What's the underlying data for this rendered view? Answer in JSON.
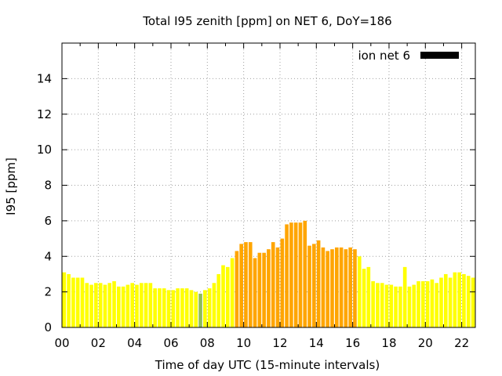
{
  "chart_data": {
    "type": "bar",
    "title": "Total I95 zenith [ppm] on NET 6, DoY=186",
    "xlabel": "Time of day UTC (15-minute intervals)",
    "ylabel": "I95 [ppm]",
    "xlim": [
      0,
      22.75
    ],
    "ylim": [
      0,
      16
    ],
    "grid": true,
    "legend": {
      "label": "ion net 6",
      "color": "#000000",
      "position": "top-right"
    },
    "x_ticks": [
      {
        "v": 0,
        "label": "00"
      },
      {
        "v": 2,
        "label": "02"
      },
      {
        "v": 4,
        "label": "04"
      },
      {
        "v": 6,
        "label": "06"
      },
      {
        "v": 8,
        "label": "08"
      },
      {
        "v": 10,
        "label": "10"
      },
      {
        "v": 12,
        "label": "12"
      },
      {
        "v": 14,
        "label": "14"
      },
      {
        "v": 16,
        "label": "16"
      },
      {
        "v": 18,
        "label": "18"
      },
      {
        "v": 20,
        "label": "20"
      },
      {
        "v": 22,
        "label": "22"
      }
    ],
    "y_ticks": [
      {
        "v": 0,
        "label": "0"
      },
      {
        "v": 2,
        "label": "2"
      },
      {
        "v": 4,
        "label": "4"
      },
      {
        "v": 6,
        "label": "6"
      },
      {
        "v": 8,
        "label": "8"
      },
      {
        "v": 10,
        "label": "10"
      },
      {
        "v": 12,
        "label": "12"
      },
      {
        "v": 14,
        "label": "14"
      }
    ],
    "interval_hours": 0.25,
    "colors": {
      "low": "#ffff00",
      "mid": "#ffa500",
      "dip": "#8fbc5a"
    },
    "bars": [
      {
        "x": 0.0,
        "y": 3.1,
        "c": "low"
      },
      {
        "x": 0.25,
        "y": 3.0,
        "c": "low"
      },
      {
        "x": 0.5,
        "y": 2.8,
        "c": "low"
      },
      {
        "x": 0.75,
        "y": 2.8,
        "c": "low"
      },
      {
        "x": 1.0,
        "y": 2.8,
        "c": "low"
      },
      {
        "x": 1.25,
        "y": 2.5,
        "c": "low"
      },
      {
        "x": 1.5,
        "y": 2.4,
        "c": "low"
      },
      {
        "x": 1.75,
        "y": 2.5,
        "c": "low"
      },
      {
        "x": 2.0,
        "y": 2.5,
        "c": "low"
      },
      {
        "x": 2.25,
        "y": 2.4,
        "c": "low"
      },
      {
        "x": 2.5,
        "y": 2.5,
        "c": "low"
      },
      {
        "x": 2.75,
        "y": 2.6,
        "c": "low"
      },
      {
        "x": 3.0,
        "y": 2.3,
        "c": "low"
      },
      {
        "x": 3.25,
        "y": 2.3,
        "c": "low"
      },
      {
        "x": 3.5,
        "y": 2.4,
        "c": "low"
      },
      {
        "x": 3.75,
        "y": 2.5,
        "c": "low"
      },
      {
        "x": 4.0,
        "y": 2.4,
        "c": "low"
      },
      {
        "x": 4.25,
        "y": 2.5,
        "c": "low"
      },
      {
        "x": 4.5,
        "y": 2.5,
        "c": "low"
      },
      {
        "x": 4.75,
        "y": 2.5,
        "c": "low"
      },
      {
        "x": 5.0,
        "y": 2.2,
        "c": "low"
      },
      {
        "x": 5.25,
        "y": 2.2,
        "c": "low"
      },
      {
        "x": 5.5,
        "y": 2.2,
        "c": "low"
      },
      {
        "x": 5.75,
        "y": 2.1,
        "c": "low"
      },
      {
        "x": 6.0,
        "y": 2.1,
        "c": "low"
      },
      {
        "x": 6.25,
        "y": 2.2,
        "c": "low"
      },
      {
        "x": 6.5,
        "y": 2.2,
        "c": "low"
      },
      {
        "x": 6.75,
        "y": 2.2,
        "c": "low"
      },
      {
        "x": 7.0,
        "y": 2.1,
        "c": "low"
      },
      {
        "x": 7.25,
        "y": 2.0,
        "c": "low"
      },
      {
        "x": 7.5,
        "y": 1.9,
        "c": "dip"
      },
      {
        "x": 7.75,
        "y": 2.1,
        "c": "low"
      },
      {
        "x": 8.0,
        "y": 2.2,
        "c": "low"
      },
      {
        "x": 8.25,
        "y": 2.5,
        "c": "low"
      },
      {
        "x": 8.5,
        "y": 3.0,
        "c": "low"
      },
      {
        "x": 8.75,
        "y": 3.5,
        "c": "low"
      },
      {
        "x": 9.0,
        "y": 3.4,
        "c": "low"
      },
      {
        "x": 9.25,
        "y": 3.9,
        "c": "low"
      },
      {
        "x": 9.5,
        "y": 4.3,
        "c": "mid"
      },
      {
        "x": 9.75,
        "y": 4.7,
        "c": "mid"
      },
      {
        "x": 10.0,
        "y": 4.8,
        "c": "mid"
      },
      {
        "x": 10.25,
        "y": 4.8,
        "c": "mid"
      },
      {
        "x": 10.5,
        "y": 3.9,
        "c": "mid"
      },
      {
        "x": 10.75,
        "y": 4.2,
        "c": "mid"
      },
      {
        "x": 11.0,
        "y": 4.2,
        "c": "mid"
      },
      {
        "x": 11.25,
        "y": 4.4,
        "c": "mid"
      },
      {
        "x": 11.5,
        "y": 4.8,
        "c": "mid"
      },
      {
        "x": 11.75,
        "y": 4.5,
        "c": "mid"
      },
      {
        "x": 12.0,
        "y": 5.0,
        "c": "mid"
      },
      {
        "x": 12.25,
        "y": 5.8,
        "c": "mid"
      },
      {
        "x": 12.5,
        "y": 5.9,
        "c": "mid"
      },
      {
        "x": 12.75,
        "y": 5.9,
        "c": "mid"
      },
      {
        "x": 13.0,
        "y": 5.9,
        "c": "mid"
      },
      {
        "x": 13.25,
        "y": 6.0,
        "c": "mid"
      },
      {
        "x": 13.5,
        "y": 4.6,
        "c": "mid"
      },
      {
        "x": 13.75,
        "y": 4.7,
        "c": "mid"
      },
      {
        "x": 14.0,
        "y": 4.9,
        "c": "mid"
      },
      {
        "x": 14.25,
        "y": 4.5,
        "c": "mid"
      },
      {
        "x": 14.5,
        "y": 4.3,
        "c": "mid"
      },
      {
        "x": 14.75,
        "y": 4.4,
        "c": "mid"
      },
      {
        "x": 15.0,
        "y": 4.5,
        "c": "mid"
      },
      {
        "x": 15.25,
        "y": 4.5,
        "c": "mid"
      },
      {
        "x": 15.5,
        "y": 4.4,
        "c": "mid"
      },
      {
        "x": 15.75,
        "y": 4.5,
        "c": "mid"
      },
      {
        "x": 16.0,
        "y": 4.4,
        "c": "mid"
      },
      {
        "x": 16.25,
        "y": 4.0,
        "c": "low"
      },
      {
        "x": 16.5,
        "y": 3.3,
        "c": "low"
      },
      {
        "x": 16.75,
        "y": 3.4,
        "c": "low"
      },
      {
        "x": 17.0,
        "y": 2.6,
        "c": "low"
      },
      {
        "x": 17.25,
        "y": 2.5,
        "c": "low"
      },
      {
        "x": 17.5,
        "y": 2.5,
        "c": "low"
      },
      {
        "x": 17.75,
        "y": 2.4,
        "c": "low"
      },
      {
        "x": 18.0,
        "y": 2.4,
        "c": "low"
      },
      {
        "x": 18.25,
        "y": 2.3,
        "c": "low"
      },
      {
        "x": 18.5,
        "y": 2.3,
        "c": "low"
      },
      {
        "x": 18.75,
        "y": 3.4,
        "c": "low"
      },
      {
        "x": 19.0,
        "y": 2.3,
        "c": "low"
      },
      {
        "x": 19.25,
        "y": 2.4,
        "c": "low"
      },
      {
        "x": 19.5,
        "y": 2.6,
        "c": "low"
      },
      {
        "x": 19.75,
        "y": 2.6,
        "c": "low"
      },
      {
        "x": 20.0,
        "y": 2.6,
        "c": "low"
      },
      {
        "x": 20.25,
        "y": 2.7,
        "c": "low"
      },
      {
        "x": 20.5,
        "y": 2.5,
        "c": "low"
      },
      {
        "x": 20.75,
        "y": 2.8,
        "c": "low"
      },
      {
        "x": 21.0,
        "y": 3.0,
        "c": "low"
      },
      {
        "x": 21.25,
        "y": 2.8,
        "c": "low"
      },
      {
        "x": 21.5,
        "y": 3.1,
        "c": "low"
      },
      {
        "x": 21.75,
        "y": 3.1,
        "c": "low"
      },
      {
        "x": 22.0,
        "y": 3.0,
        "c": "low"
      },
      {
        "x": 22.25,
        "y": 2.9,
        "c": "low"
      },
      {
        "x": 22.5,
        "y": 2.8,
        "c": "low"
      }
    ]
  }
}
